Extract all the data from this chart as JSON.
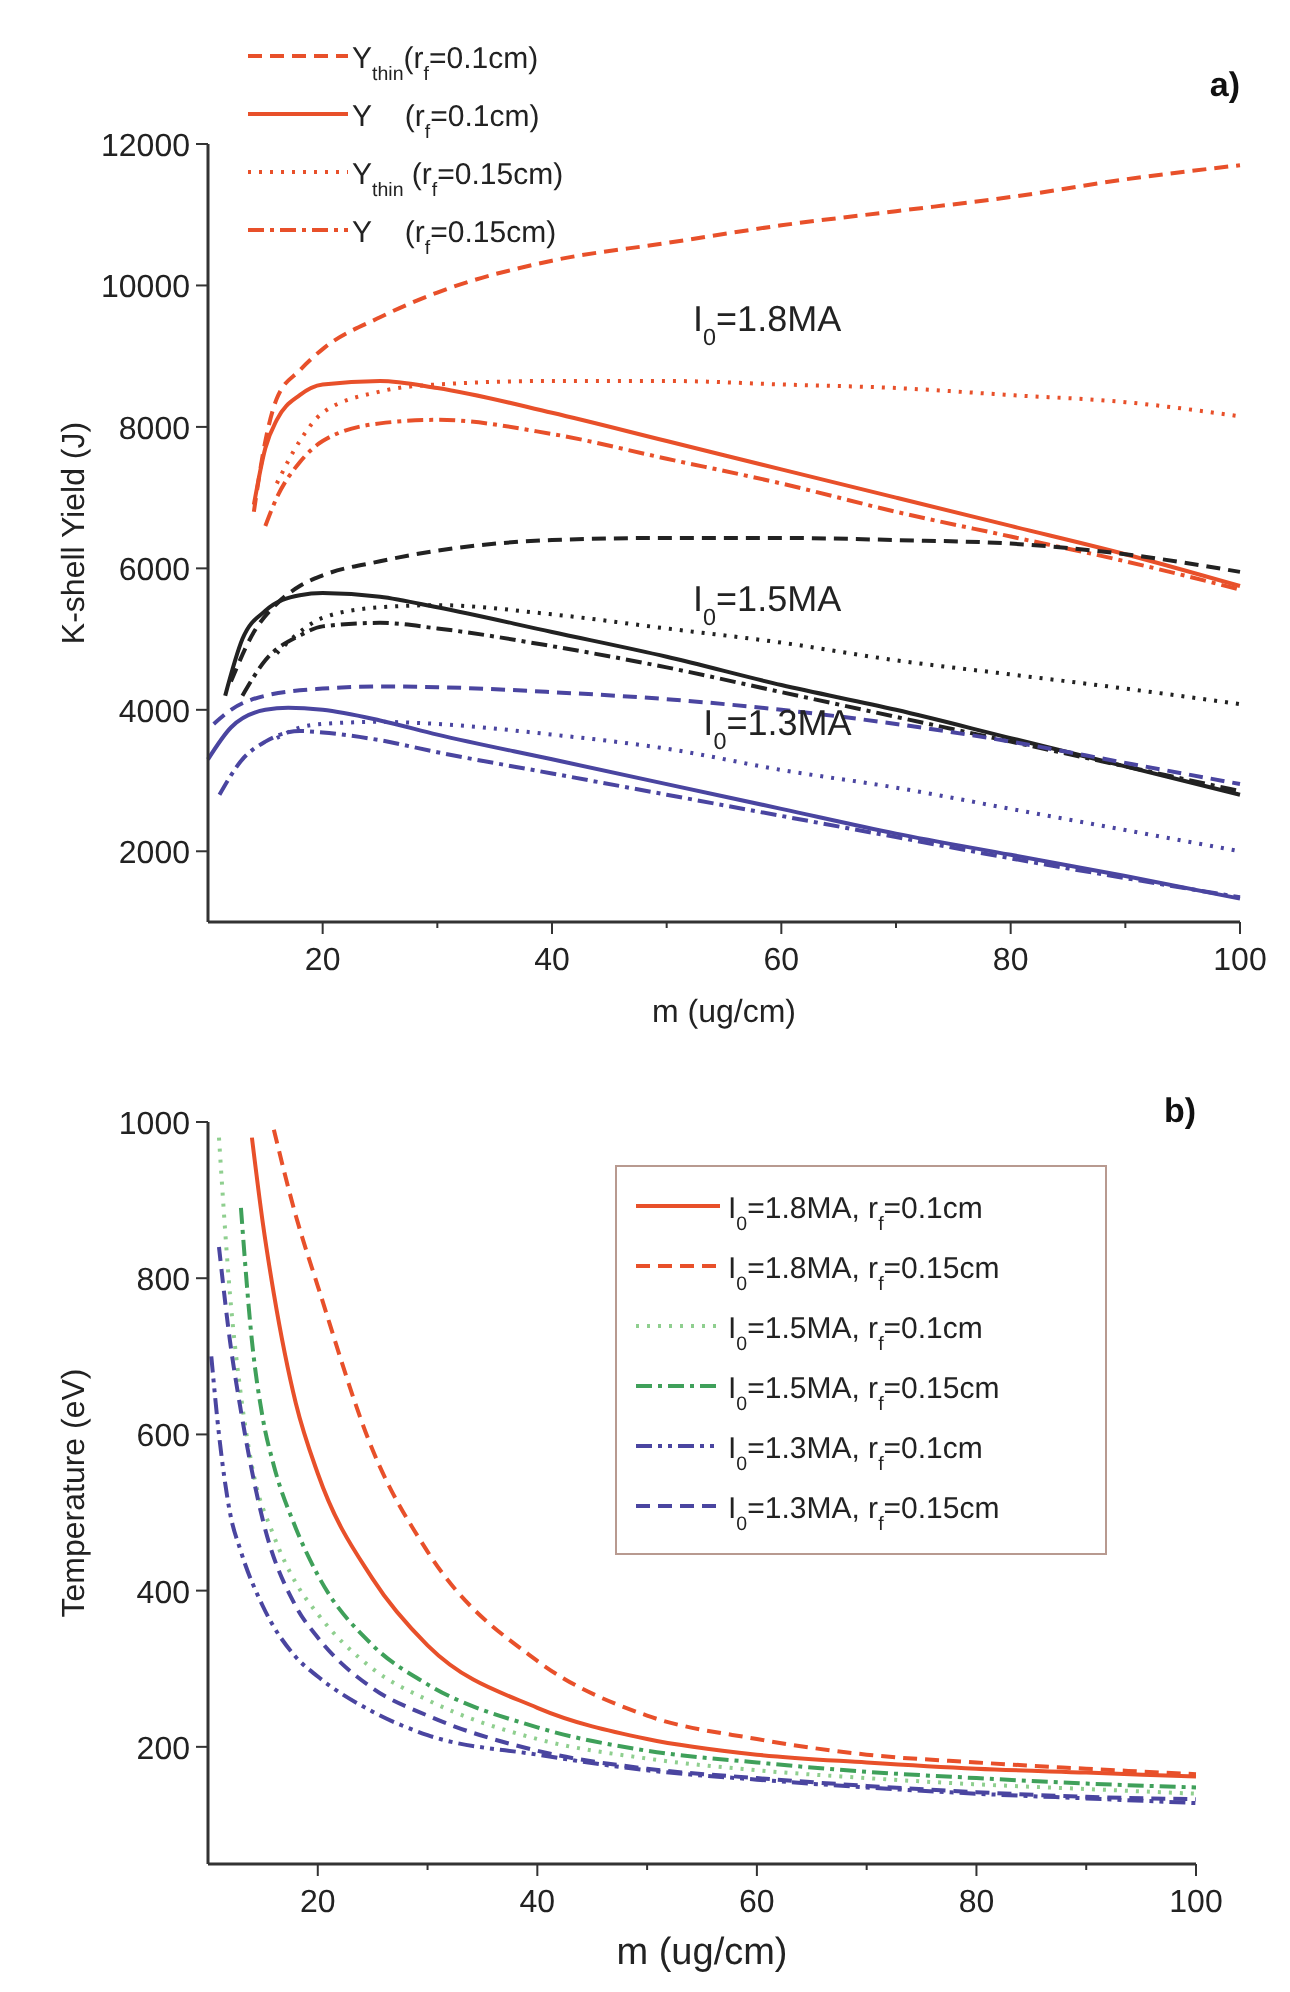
{
  "chart_data": [
    {
      "type": "line",
      "title": "a)",
      "xlabel": "m (ug/cm)",
      "ylabel": "K-shell Yield (J)",
      "xlim": [
        10,
        100
      ],
      "ylim": [
        1000,
        12000
      ],
      "xticks": [
        20,
        {
          "value": 30,
          "label": null
        },
        40,
        {
          "value": 50,
          "label": null
        },
        60,
        {
          "value": 70,
          "label": null
        },
        80,
        {
          "value": 90,
          "label": null
        },
        100
      ],
      "yticks": [
        2000,
        4000,
        6000,
        8000,
        10000,
        12000
      ],
      "grid": false,
      "legend": "top left",
      "annotations": [
        "I$_{0}$=1.8MA",
        "I$_{0}$=1.5MA",
        "I$_{0}$=1.3MA"
      ],
      "series": [
        {
          "name": "Y$_{thin}$(r$_{f}$=0.1cm)",
          "color": "#e8502a",
          "line_style": "dashed",
          "x": [
            14,
            15,
            16,
            18,
            20,
            25,
            30,
            40,
            50,
            60,
            70,
            80,
            90,
            100
          ],
          "values": [
            6800,
            7800,
            8400,
            8800,
            9100,
            9550,
            9900,
            10350,
            10600,
            10850,
            11050,
            11250,
            11500,
            11700
          ]
        },
        {
          "name": "Y    (r$_{f}$=0.1cm)",
          "color": "#e8502a",
          "line_style": "solid",
          "x": [
            14,
            15,
            16,
            18,
            20,
            25,
            30,
            40,
            50,
            60,
            70,
            80,
            90,
            100
          ],
          "values": [
            6900,
            7700,
            8100,
            8450,
            8600,
            8650,
            8550,
            8200,
            7800,
            7400,
            7000,
            6600,
            6200,
            5750
          ]
        },
        {
          "name": "Y$_{thin}$ (r$_{f}$=0.15cm)",
          "color": "#e8502a",
          "line_style": "dotted",
          "x": [
            16,
            18,
            20,
            25,
            30,
            40,
            50,
            60,
            70,
            80,
            90,
            100
          ],
          "values": [
            7200,
            7800,
            8200,
            8500,
            8600,
            8650,
            8650,
            8600,
            8550,
            8450,
            8350,
            8150
          ]
        },
        {
          "name": "Y    (r$_{f}$=0.15cm)",
          "color": "#e8502a",
          "line_style": "dashdot",
          "x": [
            15,
            16,
            18,
            20,
            25,
            30,
            40,
            50,
            60,
            70,
            80,
            90,
            100
          ],
          "values": [
            6600,
            7000,
            7500,
            7800,
            8050,
            8100,
            7900,
            7550,
            7200,
            6800,
            6450,
            6100,
            5700
          ]
        },
        {
          "color": "#222222",
          "line_style": "dashed",
          "x": [
            12,
            14,
            16,
            18,
            20,
            25,
            30,
            40,
            50,
            60,
            70,
            80,
            90,
            100
          ],
          "values": [
            4400,
            5100,
            5500,
            5750,
            5900,
            6100,
            6250,
            6400,
            6430,
            6430,
            6400,
            6350,
            6200,
            5950
          ]
        },
        {
          "color": "#222222",
          "line_style": "solid",
          "x": [
            11.5,
            13,
            15,
            18,
            20,
            25,
            30,
            40,
            50,
            60,
            70,
            80,
            90,
            100
          ],
          "values": [
            4200,
            5000,
            5400,
            5620,
            5650,
            5600,
            5450,
            5100,
            4750,
            4350,
            4000,
            3600,
            3200,
            2800
          ]
        },
        {
          "color": "#222222",
          "line_style": "dotted",
          "x": [
            16,
            18,
            20,
            25,
            30,
            40,
            50,
            60,
            70,
            80,
            90,
            100
          ],
          "values": [
            4800,
            5100,
            5300,
            5450,
            5480,
            5350,
            5150,
            4950,
            4700,
            4500,
            4300,
            4080
          ]
        },
        {
          "color": "#222222",
          "line_style": "dashdot",
          "x": [
            13,
            15,
            18,
            20,
            25,
            30,
            40,
            50,
            60,
            70,
            80,
            90,
            100
          ],
          "values": [
            4200,
            4700,
            5050,
            5180,
            5230,
            5150,
            4900,
            4600,
            4250,
            3900,
            3550,
            3200,
            2850
          ]
        },
        {
          "color": "#4a45a0",
          "line_style": "dashed",
          "x": [
            10.5,
            12,
            15,
            20,
            25,
            30,
            40,
            50,
            60,
            70,
            80,
            90,
            100
          ],
          "values": [
            3800,
            4000,
            4200,
            4300,
            4330,
            4320,
            4250,
            4150,
            4000,
            3800,
            3550,
            3250,
            2950
          ]
        },
        {
          "color": "#4a45a0",
          "line_style": "solid",
          "x": [
            10,
            12,
            15,
            17,
            20,
            25,
            30,
            40,
            50,
            60,
            70,
            80,
            90,
            100
          ],
          "values": [
            3300,
            3750,
            4000,
            4030,
            4000,
            3850,
            3650,
            3300,
            2950,
            2600,
            2250,
            1950,
            1650,
            1330
          ]
        },
        {
          "color": "#4a45a0",
          "line_style": "dotted",
          "x": [
            16,
            18,
            20,
            25,
            30,
            40,
            50,
            60,
            70,
            80,
            90,
            100
          ],
          "values": [
            3600,
            3750,
            3800,
            3830,
            3800,
            3650,
            3450,
            3150,
            2900,
            2600,
            2300,
            2000
          ]
        },
        {
          "color": "#4a45a0",
          "line_style": "dashdot",
          "x": [
            11,
            13,
            15,
            18,
            20,
            25,
            30,
            40,
            50,
            60,
            70,
            80,
            90,
            100
          ],
          "values": [
            2800,
            3300,
            3550,
            3700,
            3680,
            3570,
            3400,
            3100,
            2800,
            2500,
            2200,
            1900,
            1620,
            1350
          ]
        }
      ]
    },
    {
      "type": "line",
      "title": "b)",
      "xlabel": "m (ug/cm)",
      "ylabel": "Temperature (eV)",
      "xlim": [
        10,
        100
      ],
      "ylim": [
        50,
        1000
      ],
      "xticks": [
        20,
        {
          "value": 30,
          "label": null
        },
        40,
        {
          "value": 50,
          "label": null
        },
        60,
        {
          "value": 70,
          "label": null
        },
        80,
        {
          "value": 90,
          "label": null
        },
        100
      ],
      "yticks": [
        200,
        400,
        600,
        800,
        1000
      ],
      "grid": false,
      "legend": "top right",
      "series": [
        {
          "name": "I$_{0}$=1.8MA, r$_{f}$=0.1cm",
          "color": "#e8502a",
          "line_style": "solid",
          "x": [
            14,
            15,
            16,
            18,
            20,
            25,
            30,
            40,
            50,
            60,
            70,
            80,
            90,
            100
          ],
          "values": [
            980,
            870,
            780,
            640,
            550,
            415,
            330,
            250,
            210,
            190,
            180,
            172,
            167,
            162
          ]
        },
        {
          "name": "I$_{0}$=1.8MA, r$_{f}$=0.15cm",
          "color": "#e8502a",
          "line_style": "dashed",
          "x": [
            16,
            18,
            20,
            25,
            30,
            40,
            50,
            60,
            70,
            80,
            90,
            100
          ],
          "values": [
            990,
            880,
            790,
            580,
            450,
            310,
            240,
            210,
            190,
            180,
            172,
            165
          ]
        },
        {
          "name": "I$_{0}$=1.5MA, r$_{f}$=0.1cm",
          "color": "#8fcf8f",
          "line_style": "dotted",
          "x": [
            11,
            12,
            13,
            14,
            16,
            18,
            20,
            25,
            30,
            40,
            50,
            60,
            70,
            80,
            90,
            100
          ],
          "values": [
            980,
            780,
            650,
            560,
            470,
            410,
            370,
            300,
            260,
            210,
            185,
            170,
            160,
            152,
            146,
            140
          ]
        },
        {
          "name": "I$_{0}$=1.5MA, r$_{f}$=0.15cm",
          "color": "#3fa05a",
          "line_style": "dashdot",
          "x": [
            13,
            14,
            15,
            16,
            18,
            20,
            25,
            30,
            40,
            50,
            60,
            70,
            80,
            90,
            100
          ],
          "values": [
            890,
            720,
            620,
            560,
            480,
            420,
            330,
            280,
            225,
            195,
            180,
            168,
            160,
            153,
            148
          ]
        },
        {
          "name": "I$_{0}$=1.3MA, r$_{f}$=0.1cm",
          "color": "#4a45a0",
          "line_style": "dashdotdot",
          "x": [
            10.3,
            11,
            12,
            13,
            15,
            18,
            20,
            25,
            30,
            40,
            50,
            60,
            70,
            80,
            90,
            100
          ],
          "values": [
            700,
            600,
            500,
            450,
            380,
            315,
            290,
            245,
            215,
            190,
            170,
            158,
            148,
            140,
            134,
            128
          ]
        },
        {
          "name": "I$_{0}$=1.3MA, r$_{f}$=0.15cm",
          "color": "#4a45a0",
          "line_style": "dashed",
          "x": [
            11,
            12,
            13,
            15,
            18,
            20,
            25,
            30,
            40,
            50,
            60,
            70,
            80,
            90,
            100
          ],
          "values": [
            840,
            720,
            630,
            490,
            380,
            340,
            275,
            240,
            195,
            172,
            160,
            150,
            142,
            136,
            133
          ]
        }
      ]
    }
  ]
}
